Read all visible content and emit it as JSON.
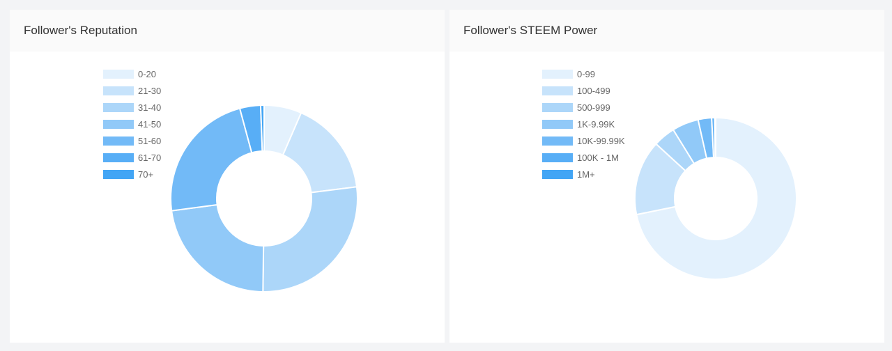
{
  "colors": [
    "#e3f1fd",
    "#c7e3fb",
    "#acd6f9",
    "#91c9f8",
    "#72baf7",
    "#58aef6",
    "#42a5f5"
  ],
  "chart_data": [
    {
      "type": "pie",
      "variant": "donut",
      "title": "Follower's Reputation",
      "categories": [
        "0-20",
        "21-30",
        "31-40",
        "41-50",
        "51-60",
        "61-70",
        "70+"
      ],
      "values": [
        6.5,
        16.5,
        27.2,
        22.7,
        22.9,
        3.6,
        0.6
      ],
      "legend": "top-left"
    },
    {
      "type": "pie",
      "variant": "donut",
      "title": "Follower's STEEM Power",
      "categories": [
        "0-99",
        "100-499",
        "500-999",
        "1K-9.99K",
        "10K-99.99K",
        "100K - 1M",
        "1M+"
      ],
      "values": [
        71.8,
        15.0,
        4.4,
        5.3,
        2.7,
        0.6,
        0.2
      ],
      "legend": "top-left"
    }
  ]
}
